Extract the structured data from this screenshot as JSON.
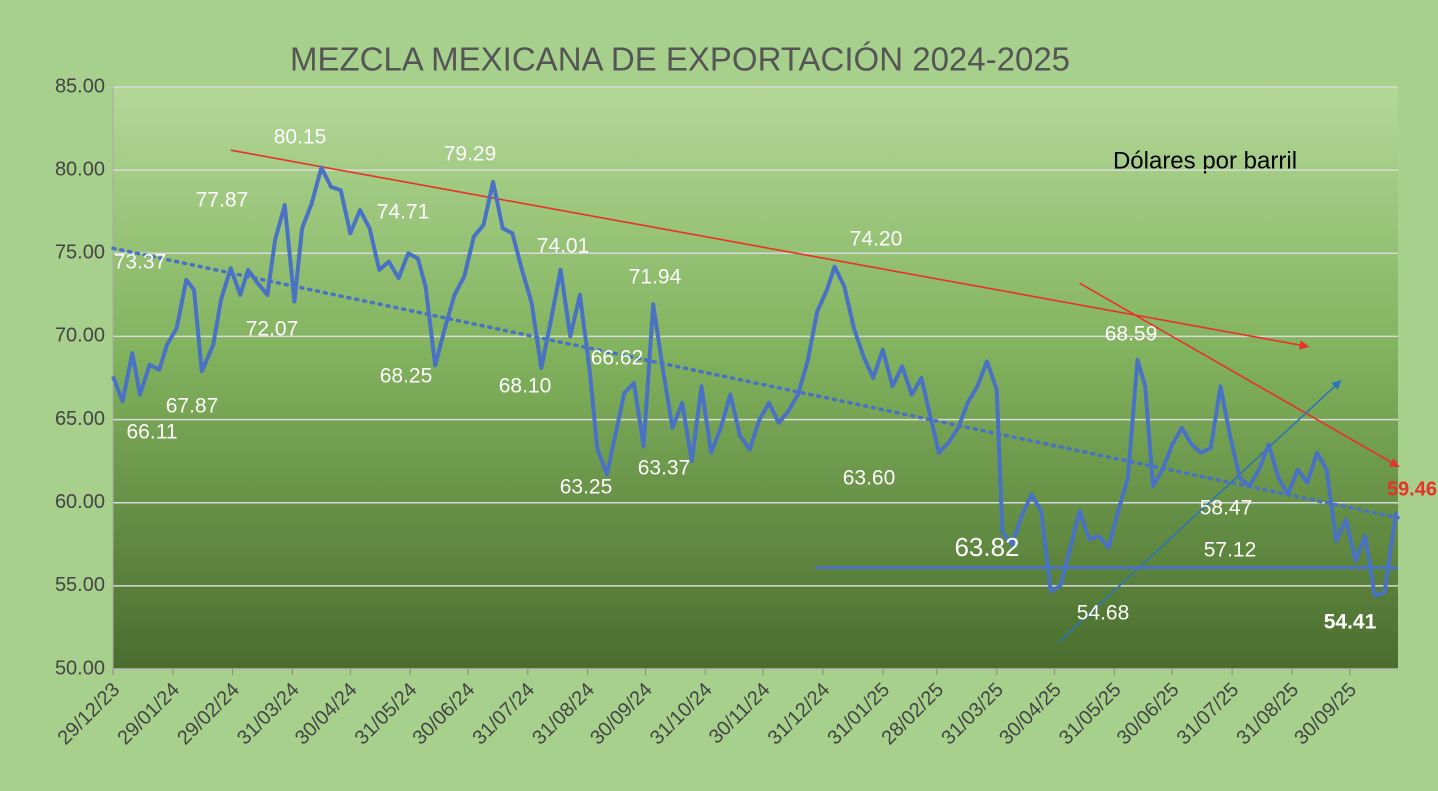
{
  "chart_data": {
    "type": "line",
    "title": "MEZCLA MEXICANA DE EXPORTACIÓN 2024-2025",
    "subtitle": "Dólares por barril",
    "x": [
      "29/12/23",
      "03/01/24",
      "08/01/24",
      "12/01/24",
      "17/01/24",
      "22/01/24",
      "26/01/24",
      "31/01/24",
      "05/02/24",
      "09/02/24",
      "13/02/24",
      "19/02/24",
      "23/02/24",
      "28/02/24",
      "04/03/24",
      "08/03/24",
      "13/03/24",
      "18/03/24",
      "22/03/24",
      "27/03/24",
      "01/04/24",
      "05/04/24",
      "10/04/24",
      "15/04/24",
      "20/04/24",
      "25/04/24",
      "30/04/24",
      "05/05/24",
      "10/05/24",
      "15/05/24",
      "20/05/24",
      "25/05/24",
      "30/05/24",
      "04/06/24",
      "08/06/24",
      "13/06/24",
      "18/06/24",
      "23/06/24",
      "28/06/24",
      "03/07/24",
      "08/07/24",
      "13/07/24",
      "18/07/24",
      "23/07/24",
      "28/07/24",
      "02/08/24",
      "07/08/24",
      "12/08/24",
      "17/08/24",
      "22/08/24",
      "27/08/24",
      "01/09/24",
      "05/09/24",
      "10/09/24",
      "14/09/24",
      "19/09/24",
      "24/09/24",
      "29/09/24",
      "04/10/24",
      "09/10/24",
      "14/10/24",
      "19/10/24",
      "24/10/24",
      "29/10/24",
      "03/11/24",
      "08/11/24",
      "13/11/24",
      "18/11/24",
      "23/11/24",
      "28/11/24",
      "03/12/24",
      "08/12/24",
      "13/12/24",
      "18/12/24",
      "23/12/24",
      "28/12/24",
      "02/01/25",
      "06/01/25",
      "11/01/25",
      "16/01/25",
      "21/01/25",
      "26/01/25",
      "31/01/25",
      "05/02/25",
      "10/02/25",
      "15/02/25",
      "20/02/25",
      "25/02/25",
      "01/03/25",
      "06/03/25",
      "11/03/25",
      "16/03/25",
      "21/03/25",
      "26/03/25",
      "31/03/25",
      "03/04/25",
      "08/04/25",
      "13/04/25",
      "18/04/25",
      "23/04/25",
      "28/04/25",
      "03/05/25",
      "08/05/25",
      "13/05/25",
      "18/05/25",
      "23/05/25",
      "28/05/25",
      "02/06/25",
      "07/06/25",
      "12/06/25",
      "16/06/25",
      "20/06/25",
      "25/06/25",
      "30/06/25",
      "05/07/25",
      "10/07/25",
      "15/07/25",
      "20/07/25",
      "25/07/25",
      "30/07/25",
      "04/08/25",
      "09/08/25",
      "14/08/25",
      "19/08/25",
      "24/08/25",
      "29/08/25",
      "03/09/25",
      "08/09/25",
      "13/09/25",
      "18/09/25",
      "23/09/25",
      "28/09/25",
      "03/10/25",
      "08/10/25",
      "13/10/25",
      "18/10/25",
      "24/10/25"
    ],
    "values": [
      67.6,
      66.1,
      69.0,
      66.5,
      68.3,
      68.0,
      69.5,
      70.5,
      73.4,
      72.8,
      67.9,
      69.5,
      72.2,
      74.1,
      72.5,
      74.0,
      73.2,
      72.5,
      75.8,
      77.9,
      72.1,
      76.5,
      78.0,
      80.15,
      79.0,
      78.8,
      76.2,
      77.6,
      76.5,
      74.0,
      74.5,
      73.5,
      75.0,
      74.7,
      73.0,
      68.25,
      70.5,
      72.5,
      73.6,
      76.0,
      76.7,
      79.29,
      76.5,
      76.2,
      74.0,
      72.0,
      68.1,
      71.0,
      74.01,
      70.0,
      72.5,
      68.0,
      63.25,
      61.7,
      63.9,
      66.6,
      67.2,
      63.4,
      71.94,
      68.0,
      64.5,
      66.0,
      62.5,
      67.0,
      63.0,
      64.5,
      66.5,
      64.0,
      63.2,
      65.0,
      66.0,
      64.8,
      65.5,
      66.5,
      68.5,
      71.5,
      72.8,
      74.2,
      73.0,
      70.5,
      68.8,
      67.5,
      69.2,
      67.0,
      68.2,
      66.5,
      67.5,
      65.0,
      63.0,
      63.6,
      64.5,
      66.0,
      67.0,
      68.5,
      66.8,
      58.2,
      57.5,
      59.2,
      60.5,
      59.5,
      54.68,
      55.0,
      57.2,
      59.5,
      57.8,
      58.0,
      57.3,
      59.5,
      61.5,
      68.59,
      67.0,
      61.0,
      62.0,
      63.5,
      64.5,
      63.5,
      63.0,
      63.3,
      67.0,
      64.0,
      61.5,
      61.0,
      62.0,
      63.5,
      61.5,
      60.5,
      62.0,
      61.2,
      63.0,
      62.0,
      57.7,
      59.0,
      56.5,
      58.0,
      54.41,
      54.6,
      59.46
    ],
    "color": "#4a72c4",
    "xlim": [
      "29/12/23",
      "25/10/25"
    ],
    "xticks": [
      "29/12/23",
      "29/01/24",
      "29/02/24",
      "31/03/24",
      "30/04/24",
      "31/05/24",
      "30/06/24",
      "31/07/24",
      "31/08/24",
      "30/09/24",
      "31/10/24",
      "30/11/24",
      "31/12/24",
      "31/01/25",
      "28/02/25",
      "31/03/25",
      "30/04/25",
      "31/05/25",
      "30/06/25",
      "31/07/25",
      "31/08/25",
      "30/09/25"
    ],
    "ylim": [
      50,
      85
    ],
    "yticks": [
      {
        "value": 50,
        "label": "50.00"
      },
      {
        "value": 55,
        "label": "55.00"
      },
      {
        "value": 60,
        "label": "60.00"
      },
      {
        "value": 65,
        "label": "65.00"
      },
      {
        "value": 70,
        "label": "70.00"
      },
      {
        "value": 75,
        "label": "75.00"
      },
      {
        "value": 80,
        "label": "80.00"
      },
      {
        "value": 85,
        "label": "85.00"
      }
    ],
    "grid": true,
    "annotations": [
      "73.37",
      "66.11",
      "67.87",
      "77.87",
      "72.07",
      "80.15",
      "74.71",
      "68.25",
      "79.29",
      "68.10",
      "74.01",
      "71.94",
      "66.62",
      "63.25",
      "63.37",
      "74.20",
      "63.60",
      "63.82",
      "54.68",
      "68.59",
      "58.47",
      "57.12",
      "59.46",
      "54.41"
    ],
    "trendlines": [
      {
        "x": [
          "29/12/23",
          "25/10/25"
        ],
        "y": [
          75.3,
          59.1
        ],
        "color": "#4a72c4",
        "style": "dotted"
      },
      {
        "x": [
          "28/02/24",
          "08/09/25"
        ],
        "y": [
          81.2,
          69.4
        ],
        "color": "#e8312a",
        "style": "arrow"
      },
      {
        "x": [
          "13/05/25",
          "25/10/25"
        ],
        "y": [
          73.2,
          62.2
        ],
        "color": "#e8312a",
        "style": "arrow"
      },
      {
        "x": [
          "02/05/25",
          "25/09/25"
        ],
        "y": [
          51.6,
          67.3
        ],
        "color": "#2e75b6",
        "style": "arrow"
      },
      {
        "x": [
          "27/12/24",
          "25/10/25"
        ],
        "y": [
          56.1,
          56.1
        ],
        "color": "#4a72c4",
        "style": "solid"
      }
    ]
  }
}
